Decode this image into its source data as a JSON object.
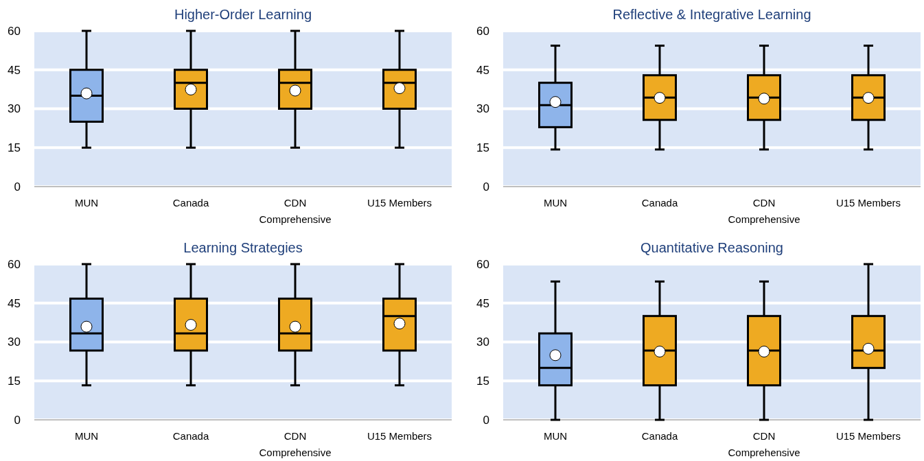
{
  "chart_data": [
    {
      "type": "box",
      "title": "Higher-Order Learning",
      "categories": [
        "MUN",
        "Canada",
        "CDN Comprehensive",
        "U15 Members"
      ],
      "colors": [
        "#8eb4ea",
        "#eeaa22",
        "#eeaa22",
        "#eeaa22"
      ],
      "ylim": [
        0,
        60
      ],
      "yticks": [
        0,
        15,
        30,
        45,
        60
      ],
      "grid": "y",
      "boxes": [
        {
          "low": 15,
          "q1": 25,
          "median": 35,
          "q3": 45,
          "high": 60,
          "mean": 35.9
        },
        {
          "low": 15,
          "q1": 30,
          "median": 40,
          "q3": 45,
          "high": 60,
          "mean": 37.4
        },
        {
          "low": 15,
          "q1": 30,
          "median": 40,
          "q3": 45,
          "high": 60,
          "mean": 37
        },
        {
          "low": 15,
          "q1": 30,
          "median": 40,
          "q3": 45,
          "high": 60,
          "mean": 37.9
        }
      ]
    },
    {
      "type": "box",
      "title": "Reflective & Integrative Learning",
      "categories": [
        "MUN",
        "Canada",
        "CDN Comprehensive",
        "U15 Members"
      ],
      "colors": [
        "#8eb4ea",
        "#eeaa22",
        "#eeaa22",
        "#eeaa22"
      ],
      "ylim": [
        0,
        60
      ],
      "yticks": [
        0,
        15,
        30,
        45,
        60
      ],
      "grid": "y",
      "boxes": [
        {
          "low": 14.3,
          "q1": 22.9,
          "median": 31.4,
          "q3": 40,
          "high": 54.3,
          "mean": 32.6
        },
        {
          "low": 14.3,
          "q1": 25.7,
          "median": 34.3,
          "q3": 42.9,
          "high": 54.3,
          "mean": 34.2
        },
        {
          "low": 14.3,
          "q1": 25.7,
          "median": 34.3,
          "q3": 42.9,
          "high": 54.3,
          "mean": 33.9
        },
        {
          "low": 14.3,
          "q1": 25.7,
          "median": 34.3,
          "q3": 42.9,
          "high": 54.3,
          "mean": 34.2
        }
      ]
    },
    {
      "type": "box",
      "title": "Learning Strategies",
      "categories": [
        "MUN",
        "Canada",
        "CDN Comprehensive",
        "U15 Members"
      ],
      "colors": [
        "#8eb4ea",
        "#eeaa22",
        "#eeaa22",
        "#eeaa22"
      ],
      "ylim": [
        0,
        60
      ],
      "yticks": [
        0,
        15,
        30,
        45,
        60
      ],
      "grid": "y",
      "boxes": [
        {
          "low": 13.3,
          "q1": 26.7,
          "median": 33.3,
          "q3": 46.7,
          "high": 60,
          "mean": 35.9
        },
        {
          "low": 13.3,
          "q1": 26.7,
          "median": 33.3,
          "q3": 46.7,
          "high": 60,
          "mean": 36.6
        },
        {
          "low": 13.3,
          "q1": 26.7,
          "median": 33.3,
          "q3": 46.7,
          "high": 60,
          "mean": 35.9
        },
        {
          "low": 13.3,
          "q1": 26.7,
          "median": 40,
          "q3": 46.7,
          "high": 60,
          "mean": 37.1
        }
      ]
    },
    {
      "type": "box",
      "title": "Quantitative Reasoning",
      "categories": [
        "MUN",
        "Canada",
        "CDN Comprehensive",
        "U15 Members"
      ],
      "colors": [
        "#8eb4ea",
        "#eeaa22",
        "#eeaa22",
        "#eeaa22"
      ],
      "ylim": [
        0,
        60
      ],
      "yticks": [
        0,
        15,
        30,
        45,
        60
      ],
      "grid": "y",
      "boxes": [
        {
          "low": 0,
          "q1": 13.3,
          "median": 20,
          "q3": 33.3,
          "high": 53.3,
          "mean": 24.9
        },
        {
          "low": 0,
          "q1": 13.3,
          "median": 26.7,
          "q3": 40,
          "high": 53.3,
          "mean": 26.3
        },
        {
          "low": 0,
          "q1": 13.3,
          "median": 26.7,
          "q3": 40,
          "high": 53.3,
          "mean": 26.3
        },
        {
          "low": 0,
          "q1": 20,
          "median": 26.7,
          "q3": 40,
          "high": 60,
          "mean": 27.4
        }
      ]
    }
  ]
}
